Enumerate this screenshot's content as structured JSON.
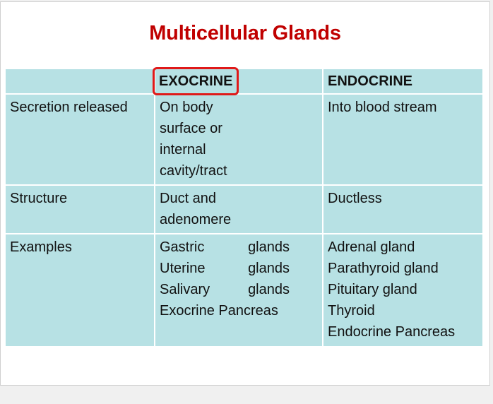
{
  "title": "Multicellular Glands",
  "headers": [
    "",
    "EXOCRINE",
    "ENDOCRINE"
  ],
  "rows": [
    {
      "label": "Secretion released",
      "exocrine": [
        "On body",
        "surface or",
        "internal",
        "cavity/tract"
      ],
      "endocrine": [
        "Into blood stream"
      ]
    },
    {
      "label": "Structure",
      "exocrine": [
        "Duct and",
        "adenomere"
      ],
      "endocrine": [
        "Ductless"
      ]
    },
    {
      "label": "Examples",
      "exocrine_pairs": [
        [
          "Gastric",
          "glands"
        ],
        [
          "Uterine",
          "glands"
        ],
        [
          "Salivary",
          "glands"
        ]
      ],
      "exocrine_tail": "Exocrine Pancreas",
      "endocrine": [
        "Adrenal gland",
        "Parathyroid gland",
        "Pituitary gland",
        "Thyroid",
        "Endocrine Pancreas"
      ]
    }
  ],
  "colors": {
    "title": "#c00000",
    "cell_bg": "#b7e1e4",
    "highlight_box": "#e01919"
  }
}
